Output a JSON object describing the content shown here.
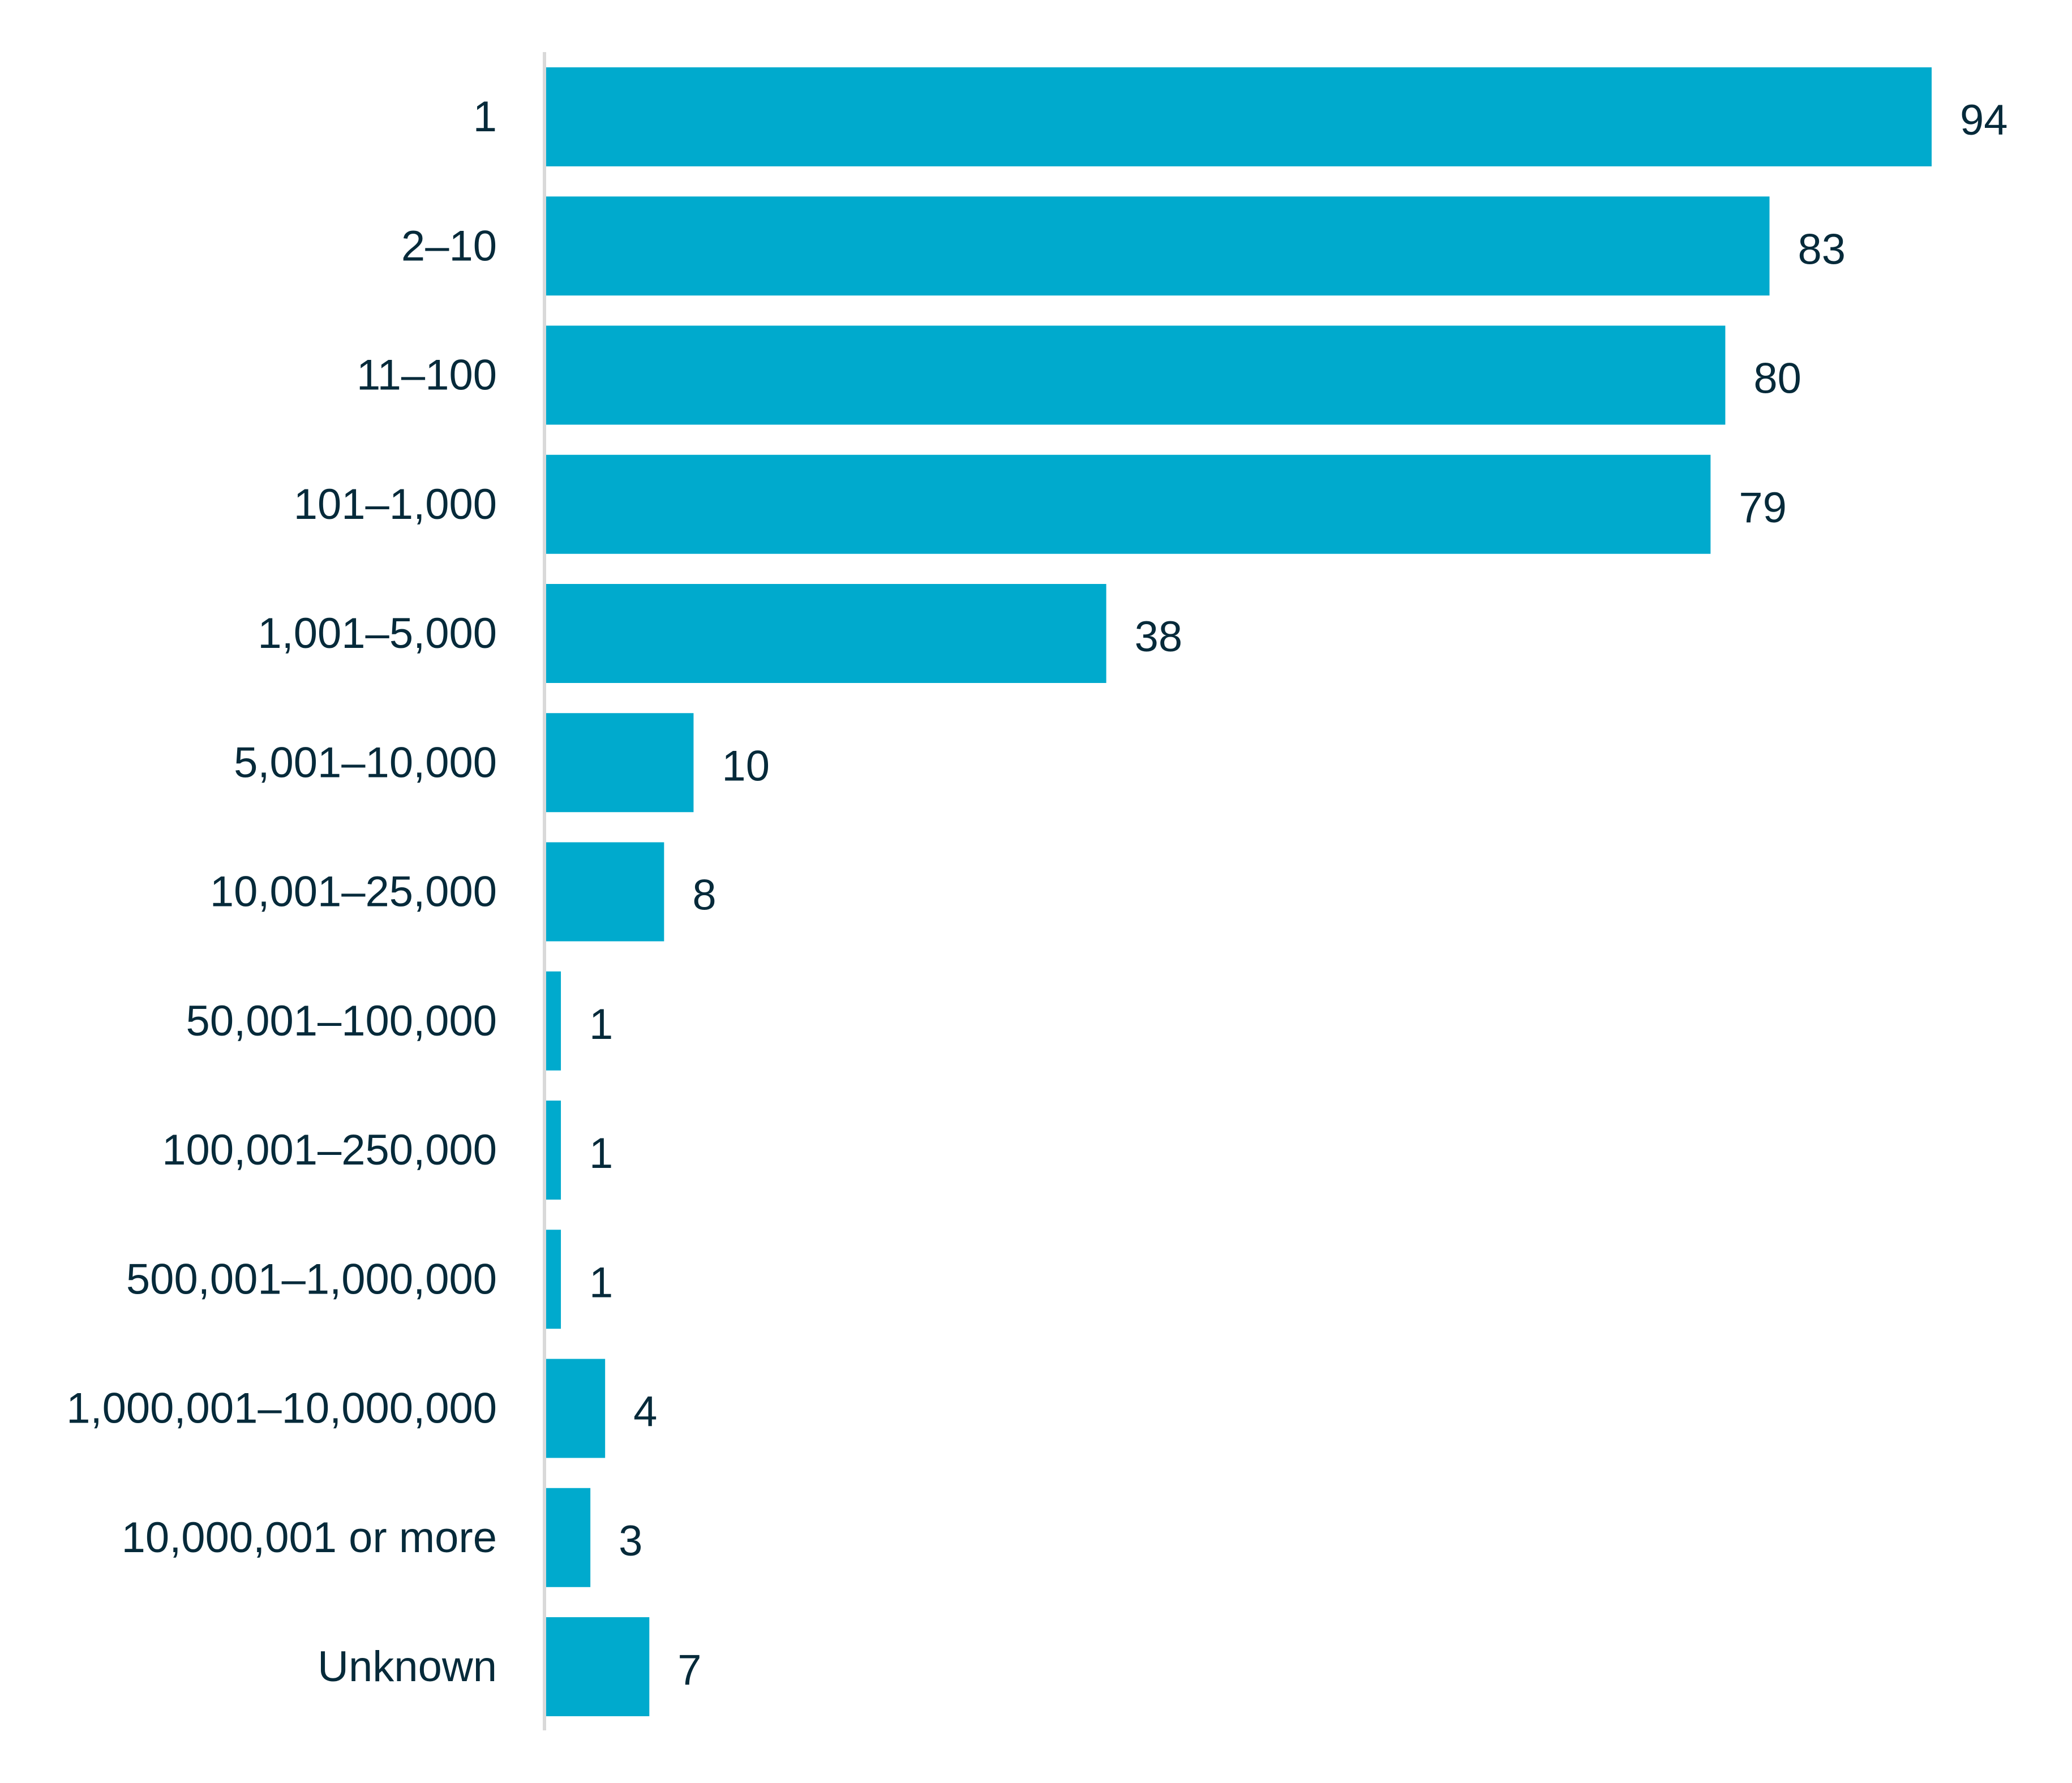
{
  "chart_data": {
    "type": "bar",
    "orientation": "horizontal",
    "title": "",
    "xlabel": "",
    "ylabel": "",
    "categories": [
      "1",
      "2–10",
      "11–100",
      "101–1,000",
      "1,001–5,000",
      "5,001–10,000",
      "10,001–25,000",
      "50,001–100,000",
      "100,001–250,000",
      "500,001–1,000,000",
      "1,000,001–10,000,000",
      "10,000,001 or more",
      "Unknown"
    ],
    "values": [
      94,
      83,
      80,
      79,
      38,
      10,
      8,
      1,
      1,
      1,
      4,
      3,
      7
    ],
    "data_labels": [
      "94",
      "83",
      "80",
      "79",
      "38",
      "10",
      "8",
      "1",
      "1",
      "1",
      "4",
      "3",
      "7"
    ],
    "xlim": [
      0,
      94
    ],
    "grid": false,
    "legend": "none",
    "bar_color": "#00aacd",
    "text_color": "#062a3a",
    "axis_color": "#d9d9d9"
  }
}
